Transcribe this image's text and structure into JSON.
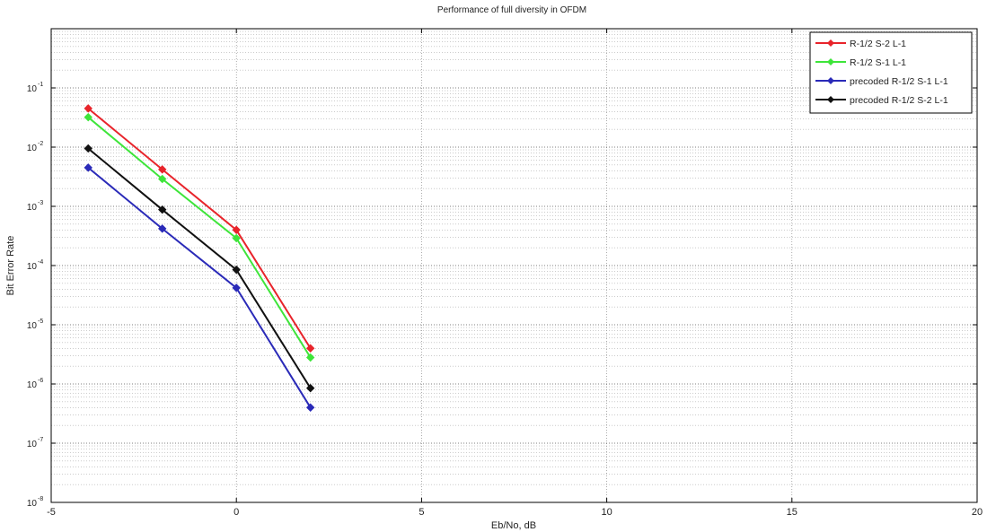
{
  "chart_data": {
    "type": "line",
    "title": "Performance of full diversity in OFDM",
    "xlabel": "Eb/No, dB",
    "ylabel": "Bit Error Rate",
    "xlim": [
      -5,
      20
    ],
    "ylim": [
      1e-08,
      1
    ],
    "yscale": "log",
    "x_ticks": [
      -5,
      0,
      5,
      10,
      15,
      20
    ],
    "y_tick_exponents": [
      -8,
      -7,
      -6,
      -5,
      -4,
      -3,
      -2,
      -1
    ],
    "y_tick_base": "10",
    "grid": true,
    "legend_position": "top-right",
    "x": [
      -4,
      -2,
      0,
      2
    ],
    "series": [
      {
        "name": "R-1/2 S-2 L-1",
        "color": "#e8242b",
        "values": [
          0.045,
          0.0042,
          0.0004,
          4e-06
        ]
      },
      {
        "name": "R-1/2 S-1 L-1",
        "color": "#3ee53a",
        "values": [
          0.032,
          0.0029,
          0.00029,
          2.8e-06
        ]
      },
      {
        "name": "precoded R-1/2 S-1 L-1",
        "color": "#2a2ab8",
        "values": [
          0.0045,
          0.00042,
          4.2e-05,
          4e-07
        ]
      },
      {
        "name": "precoded R-1/2 S-2 L-1",
        "color": "#111111",
        "values": [
          0.0095,
          0.00088,
          8.5e-05,
          8.5e-07
        ]
      }
    ]
  }
}
